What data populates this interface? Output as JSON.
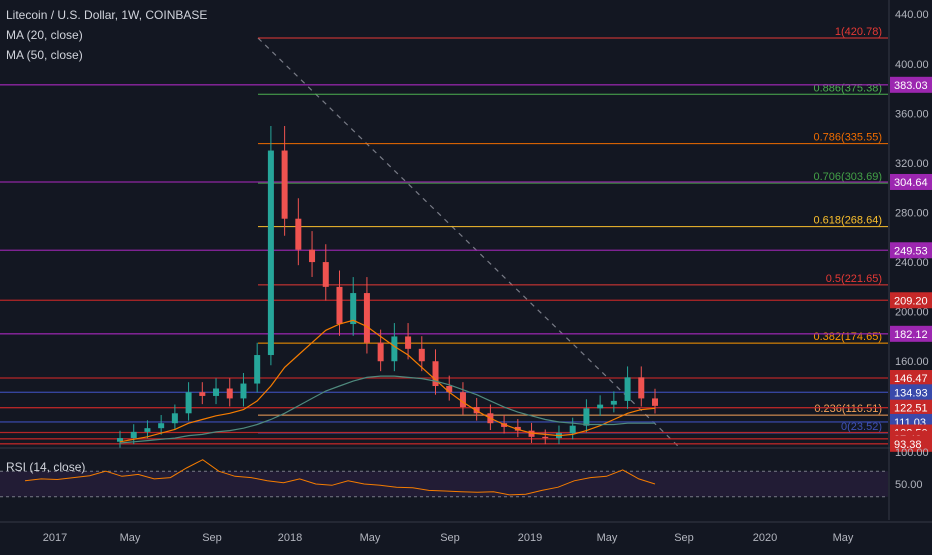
{
  "header": {
    "title": "Litecoin / U.S. Dollar, 1W, COINBASE",
    "ma20": "MA (20, close)",
    "ma50": "MA (50, close)"
  },
  "rsi": {
    "label": "RSI (14, close)",
    "ticks": [
      "100.00",
      "50.00"
    ]
  },
  "colors": {
    "background": "#131722",
    "up": "#26a69a",
    "down": "#ef5350",
    "ma20": "#f57c00",
    "ma50": "#4f8a7e",
    "rsi": "#f57c00",
    "rsi_band": "#2a1f3d"
  },
  "chart_data": {
    "type": "line",
    "title": "Litecoin / U.S. Dollar, 1W, COINBASE",
    "xlabel": "",
    "ylabel": "",
    "ylim": [
      90,
      445
    ],
    "grid": false,
    "y_ticks": [
      "440.00",
      "400.00",
      "360.00",
      "320.00",
      "280.00",
      "240.00",
      "200.00",
      "160.00",
      "120.00"
    ],
    "x_ticks": [
      "2017",
      "May",
      "Sep",
      "2018",
      "May",
      "Sep",
      "2019",
      "May",
      "Sep",
      "2020",
      "May"
    ],
    "fib_levels": [
      {
        "label": "1(420.78)",
        "value": 420.78,
        "color": "#e53935"
      },
      {
        "label": "0.886(375.38)",
        "value": 375.38,
        "color": "#4caf50"
      },
      {
        "label": "0.786(335.55)",
        "value": 335.55,
        "color": "#ef6c00"
      },
      {
        "label": "0.706(303.69)",
        "value": 303.69,
        "color": "#43a047"
      },
      {
        "label": "0.618(268.64)",
        "value": 268.64,
        "color": "#fbc02d"
      },
      {
        "label": "0.5(221.65)",
        "value": 221.65,
        "color": "#e53935"
      },
      {
        "label": "0.382(174.65)",
        "value": 174.65,
        "color": "#ff9800"
      },
      {
        "label": "0.236(116.51)",
        "value": 116.51,
        "color": "#f4a259"
      },
      {
        "label": "0(23.52)",
        "value": 23.52,
        "color": "#3f51b5"
      }
    ],
    "price_levels": [
      {
        "label": "383.03",
        "value": 383.03,
        "color": "#9c27b0"
      },
      {
        "label": "304.64",
        "value": 304.64,
        "color": "#9c27b0"
      },
      {
        "label": "249.53",
        "value": 249.53,
        "color": "#9c27b0"
      },
      {
        "label": "209.20",
        "value": 209.2,
        "color": "#c62828"
      },
      {
        "label": "182.12",
        "value": 182.12,
        "color": "#9c27b0"
      },
      {
        "label": "146.47",
        "value": 146.47,
        "color": "#c62828"
      },
      {
        "label": "134.93",
        "value": 134.93,
        "color": "#3949ab"
      },
      {
        "label": "122.51",
        "value": 122.51,
        "color": "#c62828"
      },
      {
        "label": "111.03",
        "value": 111.03,
        "color": "#3949ab"
      },
      {
        "label": "102.50",
        "value": 102.5,
        "color": "#c62828"
      },
      {
        "label": "97.43",
        "value": 97.43,
        "color": "#c62828"
      },
      {
        "label": "93.38",
        "value": 93.38,
        "color": "#c62828"
      }
    ],
    "series": [
      {
        "name": "Litecoin / U.S. Dollar",
        "x": [
          "2017-02",
          "2017-03",
          "2017-04",
          "2017-05",
          "2017-05b",
          "2017-06",
          "2017-07",
          "2017-08",
          "2017-09",
          "2017-10",
          "2017-11",
          "2017-12a",
          "2017-12b",
          "2017-12c",
          "2018-01a",
          "2018-01b",
          "2018-02a",
          "2018-02b",
          "2018-03a",
          "2018-03b",
          "2018-04a",
          "2018-04b",
          "2018-05a",
          "2018-05b",
          "2018-06a",
          "2018-06b",
          "2018-07",
          "2018-08",
          "2018-09",
          "2018-10",
          "2018-11",
          "2018-12",
          "2019-01",
          "2019-02",
          "2019-03",
          "2019-04",
          "2019-05",
          "2019-06a",
          "2019-06b",
          "2019-07"
        ],
        "values": [
          98,
          103,
          106,
          110,
          118,
          135,
          132,
          138,
          130,
          142,
          165,
          330,
          275,
          250,
          240,
          220,
          190,
          215,
          175,
          160,
          180,
          170,
          160,
          140,
          135,
          123,
          118,
          110,
          107,
          104,
          99,
          98,
          102,
          108,
          122,
          125,
          128,
          147,
          130,
          124
        ]
      },
      {
        "name": "MA (20, close)",
        "values": [
          95,
          97,
          99,
          102,
          105,
          110,
          113,
          116,
          118,
          121,
          128,
          140,
          155,
          165,
          175,
          185,
          190,
          193,
          188,
          180,
          172,
          165,
          155,
          145,
          135,
          127,
          120,
          114,
          109,
          105,
          102,
          101,
          100,
          101,
          104,
          108,
          113,
          118,
          121,
          122
        ]
      },
      {
        "name": "MA (50, close)",
        "values": [
          94,
          95,
          96,
          97,
          98,
          100,
          101,
          103,
          104,
          106,
          109,
          113,
          118,
          124,
          130,
          136,
          140,
          144,
          147,
          148,
          148,
          147,
          146,
          144,
          141,
          137,
          133,
          128,
          123,
          119,
          116,
          113,
          111,
          110,
          109,
          109,
          109,
          110,
          110,
          110
        ]
      }
    ],
    "rsi_values": [
      55,
      58,
      57,
      60,
      63,
      70,
      62,
      65,
      58,
      60,
      75,
      88,
      70,
      62,
      60,
      55,
      52,
      58,
      50,
      48,
      55,
      50,
      48,
      45,
      44,
      40,
      39,
      38,
      37,
      38,
      33,
      34,
      40,
      45,
      55,
      60,
      62,
      72,
      58,
      50
    ]
  }
}
